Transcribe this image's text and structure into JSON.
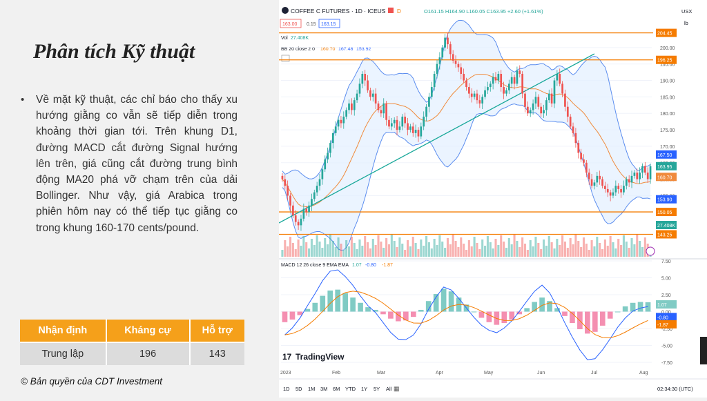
{
  "slide": {
    "title": "Phân tích Kỹ thuật",
    "bullet": "Về mặt kỹ thuật, các chỉ báo cho thấy xu hướng giằng co vẫn sẽ tiếp diễn trong khoảng thời gian tới. Trên khung D1, đường MACD cắt đường Signal hướng lên trên, giá cũng cắt đường trung bình động MA20 phá vỡ chạm trên của dải Bollinger. Như vậy, giá Arabica trong phiên hôm nay có thể tiếp tục giằng co trong khung 160-170 cents/pound.",
    "copyright": "© Bản quyền của CDT Investment"
  },
  "summary_table": {
    "headers": [
      "Nhận định",
      "Kháng cự",
      "Hỗ trợ"
    ],
    "row": [
      "Trung lập",
      "196",
      "143"
    ]
  },
  "chart_header": {
    "symbol": "COFFEE C FUTURES · 1D · ICEUS",
    "ohlc": "O161.15 H164.90 L160.05 C163.95 +2.60 (+1.61%)",
    "bid": "163.00",
    "spread": "0.15",
    "ask": "163.15",
    "vol_label": "Vol",
    "vol_value": "27.408K",
    "bb_label": "BB 20 close 2 0",
    "bb_values": [
      "160.70",
      "167.48",
      "153.92"
    ],
    "macd_label": "MACD 12 26 close 9 EMA EMA",
    "macd_values": [
      "1.07",
      "-0.80",
      "-1.87"
    ],
    "currency": "USX",
    "unit": "lb",
    "logo": "TradingView",
    "time": "02:34:30 (UTC)",
    "timeframes": [
      "1D",
      "5D",
      "1M",
      "3M",
      "6M",
      "YTD",
      "1Y",
      "5Y",
      "All"
    ]
  },
  "colors": {
    "orange_line": "#f57c00",
    "up": "#26a69a",
    "down": "#ef5350",
    "band": "#5b8def",
    "ma": "#f08a3c",
    "trend": "#19a89a"
  },
  "chart_data": [
    {
      "type": "candlestick",
      "title": "COFFEE C FUTURES · 1D · ICEUS",
      "x_labels": [
        "2023",
        "Feb",
        "Mar",
        "Apr",
        "May",
        "Jun",
        "Jul",
        "Aug"
      ],
      "y_ticks": [
        150,
        155,
        160,
        165,
        170,
        175,
        180,
        185,
        190,
        195,
        200
      ],
      "ylim": [
        140,
        205
      ],
      "close": [
        160,
        158,
        155,
        152,
        149,
        147,
        146,
        148,
        151,
        150,
        152,
        154,
        156,
        158,
        160,
        163,
        166,
        168,
        171,
        174,
        176,
        178,
        177,
        179,
        181,
        183,
        181,
        184,
        186,
        189,
        192,
        190,
        187,
        185,
        186,
        183,
        181,
        180,
        183,
        178,
        176,
        177,
        178,
        175,
        176,
        179,
        177,
        175,
        176,
        174,
        175,
        173,
        176,
        179,
        182,
        185,
        188,
        192,
        195,
        197,
        200,
        203,
        201,
        198,
        196,
        195,
        194,
        192,
        190,
        188,
        186,
        185,
        186,
        184,
        183,
        185,
        187,
        188,
        189,
        191,
        190,
        192,
        188,
        186,
        187,
        189,
        191,
        189,
        193,
        192,
        186,
        182,
        180,
        181,
        183,
        185,
        182,
        180,
        181,
        184,
        186,
        183,
        190,
        192,
        189,
        186,
        182,
        179,
        176,
        174,
        171,
        168,
        166,
        165,
        162,
        160,
        158,
        159,
        161,
        160,
        158,
        157,
        156,
        155,
        156,
        158,
        157,
        156,
        158,
        160,
        159,
        161,
        162,
        160,
        162,
        164,
        162,
        160,
        163.95
      ],
      "horizontal_levels": [
        204.45,
        196.25,
        150.05,
        143.25
      ],
      "level_labels": [
        "204.45",
        "196.25",
        "150.05",
        "143.25"
      ],
      "price_tags": [
        {
          "label": "167.50",
          "value": 167.5
        },
        {
          "label": "163.95",
          "value": 163.95
        },
        {
          "label": "160.70",
          "value": 160.7
        },
        {
          "label": "153.90",
          "value": 153.9
        }
      ],
      "volume_tag": "27.408K"
    },
    {
      "type": "bar",
      "title": "MACD 12 26 close 9 EMA EMA",
      "y_ticks": [
        7.5,
        5.0,
        2.5,
        0.0,
        -2.5,
        -5.0,
        -7.5
      ],
      "ylim": [
        -7.5,
        7.5
      ],
      "tags": [
        "1.07",
        "-0.80",
        "-1.87"
      ],
      "histogram": [
        -1.2,
        -0.9,
        -0.4,
        0.3,
        1.0,
        1.8,
        2.4,
        2.5,
        2.1,
        1.6,
        1.0,
        0.5,
        0.2,
        -0.3,
        -0.8,
        -1.1,
        -1.0,
        -0.6,
        0.2,
        1.2,
        2.0,
        2.6,
        2.3,
        1.6,
        0.8,
        0.0,
        -0.7,
        -1.2,
        -1.5,
        -1.3,
        -0.9,
        -0.3,
        0.4,
        1.1,
        1.6,
        1.2,
        0.4,
        -0.5,
        -1.3,
        -2.0,
        -2.5,
        -2.3,
        -1.6,
        -0.8,
        0.0,
        0.6,
        1.0,
        1.1,
        1.07
      ]
    }
  ]
}
